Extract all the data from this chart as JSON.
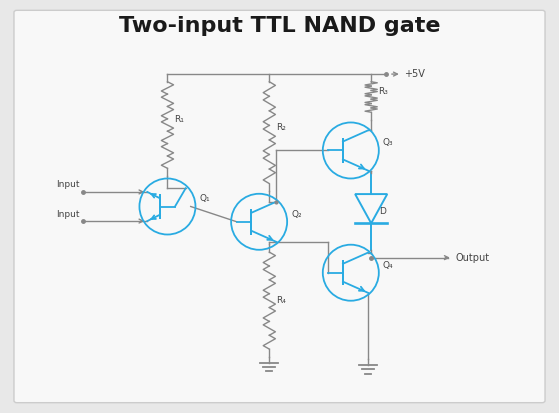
{
  "title": "Two-input TTL NAND gate",
  "title_fontsize": 16,
  "title_fontweight": "bold",
  "bg_color": "#e8e8e8",
  "panel_color": "#f8f8f8",
  "line_color": "#888888",
  "transistor_color": "#29abe2",
  "text_color": "#444444",
  "vcc_label": "+5V",
  "output_label": "Output",
  "input_labels": [
    "Input",
    "Input"
  ],
  "r_labels": [
    "R₁",
    "R₂",
    "R₃",
    "R₄"
  ],
  "q_labels": [
    "Q₁",
    "Q₂",
    "Q₃",
    "Q₄"
  ],
  "d_label": "D",
  "figsize": [
    5.59,
    4.13
  ],
  "dpi": 100
}
